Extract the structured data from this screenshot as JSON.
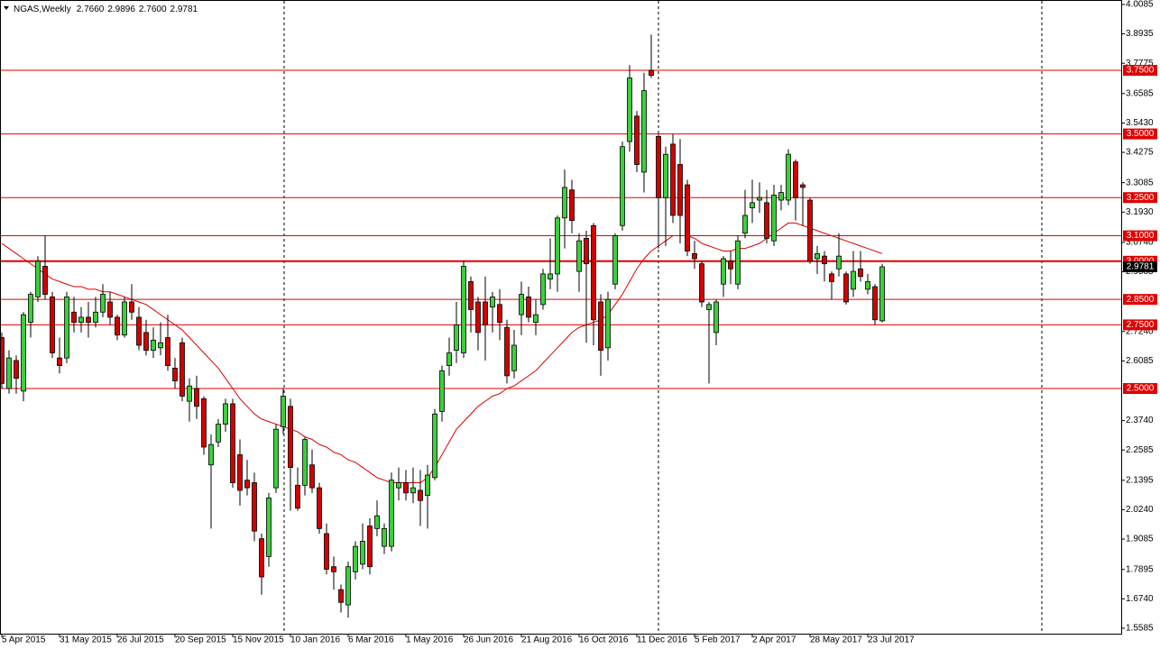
{
  "chart_data": {
    "type": "candlestick",
    "title": "NGAS,Weekly",
    "header_values": [
      {
        "value": 2.766,
        "label": "2.7660"
      },
      {
        "value": 2.9896,
        "label": "2.9896"
      },
      {
        "value": 2.76,
        "label": "2.7600"
      },
      {
        "value": 2.9781,
        "label": "2.9781"
      }
    ],
    "categories": [
      "5 Apr 2015",
      null,
      null,
      null,
      null,
      null,
      null,
      null,
      "31 May 2015",
      null,
      null,
      null,
      null,
      null,
      null,
      null,
      "26 Jul 2015",
      null,
      null,
      null,
      null,
      null,
      null,
      null,
      "20 Sep 2015",
      null,
      null,
      null,
      null,
      null,
      null,
      null,
      "15 Nov 2015",
      null,
      null,
      null,
      null,
      null,
      null,
      null,
      "10 Jan 2016",
      null,
      null,
      null,
      null,
      null,
      null,
      null,
      "6 Mar 2016",
      null,
      null,
      null,
      null,
      null,
      null,
      null,
      "1 May 2016",
      null,
      null,
      null,
      null,
      null,
      null,
      null,
      "26 Jun 2016",
      null,
      null,
      null,
      null,
      null,
      null,
      null,
      "21 Aug 2016",
      null,
      null,
      null,
      null,
      null,
      null,
      null,
      "16 Oct 2016",
      null,
      null,
      null,
      null,
      null,
      null,
      null,
      "11 Dec 2016",
      null,
      null,
      null,
      null,
      null,
      null,
      null,
      "5 Feb 2017",
      null,
      null,
      null,
      null,
      null,
      null,
      null,
      "2 Apr 2017",
      null,
      null,
      null,
      null,
      null,
      null,
      null,
      "28 May 2017",
      null,
      null,
      null,
      null,
      null,
      null,
      null,
      "23 Jul 2017",
      null,
      null
    ],
    "open": [
      2.7,
      2.5,
      2.61,
      2.49,
      2.76,
      2.86,
      2.98,
      2.86,
      2.62,
      2.62,
      2.8,
      2.76,
      2.78,
      2.76,
      2.8,
      2.84,
      2.78,
      2.71,
      2.84,
      2.78,
      2.72,
      2.65,
      2.66,
      2.7,
      2.58,
      2.68,
      2.45,
      2.5,
      2.46,
      2.2,
      2.29,
      2.36,
      2.44,
      2.24,
      2.14,
      2.13,
      1.91,
      1.84,
      2.11,
      2.35,
      2.43,
      2.12,
      2.12,
      2.2,
      2.11,
      1.93,
      1.8,
      1.71,
      1.65,
      1.78,
      1.81,
      1.96,
      1.95,
      1.88,
      1.88,
      2.11,
      2.13,
      2.09,
      2.1,
      2.08,
      2.15,
      2.41,
      2.59,
      2.65,
      2.64,
      2.92,
      2.84,
      2.84,
      2.82,
      2.83,
      2.74,
      2.57,
      2.79,
      2.86,
      2.76,
      2.83,
      2.93,
      2.95,
      3.17,
      3.28,
      2.96,
      3.09,
      3.14,
      2.84,
      2.66,
      2.91,
      3.14,
      3.47,
      3.57,
      3.35,
      3.75,
      3.49,
      3.25,
      3.46,
      3.38,
      3.3,
      3.03,
      2.99,
      2.81,
      2.72,
      2.91,
      3.0,
      2.91,
      3.11,
      3.21,
      3.24,
      3.23,
      3.08,
      3.24,
      3.24,
      3.39,
      3.3,
      3.24,
      3.01,
      3.02,
      2.95,
      2.97,
      2.95,
      2.89,
      2.97,
      2.89,
      2.9,
      2.766
    ],
    "high": [
      2.72,
      2.65,
      2.63,
      2.8,
      2.88,
      3.02,
      3.1,
      2.88,
      2.7,
      2.88,
      2.86,
      2.82,
      2.84,
      2.86,
      2.91,
      2.88,
      2.79,
      2.86,
      2.91,
      2.82,
      2.77,
      2.74,
      2.76,
      2.79,
      2.62,
      2.7,
      2.54,
      2.55,
      2.47,
      2.32,
      2.38,
      2.46,
      2.46,
      2.3,
      2.22,
      2.17,
      1.93,
      2.09,
      2.36,
      2.5,
      2.46,
      2.19,
      2.31,
      2.26,
      2.13,
      1.97,
      1.84,
      1.73,
      1.82,
      1.9,
      1.97,
      1.99,
      2.06,
      1.97,
      2.17,
      2.19,
      2.18,
      2.19,
      2.18,
      2.2,
      2.42,
      2.59,
      2.7,
      2.84,
      3.0,
      2.94,
      2.86,
      2.94,
      2.88,
      2.89,
      2.77,
      2.73,
      2.92,
      2.9,
      2.85,
      2.97,
      3.09,
      3.18,
      3.36,
      3.32,
      3.11,
      3.12,
      3.15,
      2.87,
      2.88,
      3.11,
      3.47,
      3.77,
      3.59,
      3.74,
      3.89,
      3.5,
      3.45,
      3.5,
      3.48,
      3.32,
      3.08,
      3.0,
      2.84,
      2.85,
      3.02,
      3.04,
      3.1,
      3.28,
      3.32,
      3.31,
      3.28,
      3.3,
      3.3,
      3.44,
      3.4,
      3.31,
      3.25,
      3.06,
      3.04,
      2.96,
      3.11,
      2.96,
      3.04,
      3.04,
      2.95,
      2.91,
      2.9896
    ],
    "low": [
      2.5,
      2.48,
      2.48,
      2.45,
      2.7,
      2.84,
      2.85,
      2.62,
      2.56,
      2.6,
      2.72,
      2.72,
      2.7,
      2.74,
      2.78,
      2.75,
      2.69,
      2.7,
      2.77,
      2.65,
      2.63,
      2.62,
      2.63,
      2.57,
      2.5,
      2.45,
      2.37,
      2.38,
      2.24,
      1.95,
      2.27,
      2.33,
      2.11,
      2.04,
      2.08,
      1.9,
      1.69,
      1.8,
      2.09,
      2.32,
      2.02,
      2.02,
      2.08,
      2.09,
      1.93,
      1.77,
      1.71,
      1.62,
      1.6,
      1.75,
      1.79,
      1.77,
      1.92,
      1.85,
      1.86,
      2.06,
      2.06,
      2.05,
      1.96,
      1.95,
      2.14,
      2.37,
      2.55,
      2.6,
      2.62,
      2.72,
      2.65,
      2.61,
      2.72,
      2.69,
      2.52,
      2.54,
      2.71,
      2.76,
      2.71,
      2.81,
      2.89,
      2.88,
      3.05,
      3.11,
      2.88,
      2.68,
      2.67,
      2.55,
      2.61,
      2.89,
      3.12,
      3.43,
      3.35,
      3.27,
      3.72,
      3.05,
      3.06,
      3.15,
      3.07,
      3.02,
      2.97,
      2.82,
      2.52,
      2.67,
      2.86,
      2.91,
      2.89,
      3.09,
      3.15,
      3.19,
      3.07,
      3.06,
      3.2,
      3.22,
      3.16,
      3.14,
      2.99,
      2.95,
      2.92,
      2.85,
      2.94,
      2.83,
      2.86,
      2.92,
      2.87,
      2.75,
      2.76
    ],
    "close": [
      2.52,
      2.62,
      2.54,
      2.79,
      2.87,
      3.0,
      2.87,
      2.64,
      2.59,
      2.86,
      2.76,
      2.78,
      2.76,
      2.8,
      2.87,
      2.78,
      2.71,
      2.84,
      2.8,
      2.67,
      2.65,
      2.69,
      2.68,
      2.59,
      2.53,
      2.47,
      2.51,
      2.43,
      2.27,
      2.28,
      2.36,
      2.44,
      2.13,
      2.1,
      2.11,
      1.94,
      1.76,
      2.07,
      2.34,
      2.47,
      2.19,
      2.03,
      2.3,
      2.11,
      1.95,
      1.79,
      1.78,
      1.66,
      1.8,
      1.88,
      1.9,
      1.8,
      2.0,
      1.95,
      2.14,
      2.13,
      2.09,
      2.11,
      2.06,
      2.16,
      2.4,
      2.57,
      2.64,
      2.75,
      2.98,
      2.81,
      2.72,
      2.75,
      2.86,
      2.76,
      2.55,
      2.67,
      2.87,
      2.78,
      2.79,
      2.95,
      2.95,
      3.17,
      3.29,
      3.16,
      3.08,
      2.99,
      2.77,
      2.65,
      2.85,
      3.1,
      3.45,
      3.72,
      3.38,
      3.67,
      3.73,
      3.25,
      3.42,
      3.18,
      3.18,
      3.04,
      3.01,
      2.84,
      2.83,
      2.84,
      3.01,
      2.97,
      3.08,
      3.18,
      3.23,
      3.25,
      3.09,
      3.26,
      3.27,
      3.42,
      3.25,
      3.29,
      3.0,
      3.03,
      2.99,
      2.92,
      3.02,
      2.84,
      2.96,
      2.94,
      2.92,
      2.77,
      2.9781
    ],
    "up_color": "#3ccf3c",
    "down_color": "#d40000",
    "ma": {
      "color": "#e00000",
      "values": [
        3.07,
        3.05,
        3.03,
        3.01,
        2.99,
        2.97,
        2.95,
        2.93,
        2.92,
        2.91,
        2.9,
        2.9,
        2.89,
        2.89,
        2.88,
        2.88,
        2.87,
        2.86,
        2.85,
        2.84,
        2.83,
        2.81,
        2.79,
        2.77,
        2.75,
        2.73,
        2.7,
        2.67,
        2.64,
        2.61,
        2.58,
        2.54,
        2.5,
        2.46,
        2.43,
        2.4,
        2.38,
        2.37,
        2.36,
        2.35,
        2.34,
        2.33,
        2.31,
        2.3,
        2.28,
        2.27,
        2.25,
        2.24,
        2.22,
        2.21,
        2.19,
        2.17,
        2.15,
        2.14,
        2.13,
        2.13,
        2.13,
        2.13,
        2.13,
        2.15,
        2.19,
        2.24,
        2.29,
        2.34,
        2.37,
        2.4,
        2.43,
        2.45,
        2.47,
        2.48,
        2.5,
        2.51,
        2.53,
        2.55,
        2.57,
        2.6,
        2.63,
        2.66,
        2.69,
        2.72,
        2.74,
        2.75,
        2.76,
        2.77,
        2.79,
        2.83,
        2.87,
        2.92,
        2.97,
        3.01,
        3.04,
        3.06,
        3.08,
        3.1,
        3.1,
        3.1,
        3.09,
        3.07,
        3.06,
        3.05,
        3.04,
        3.04,
        3.05,
        3.05,
        3.06,
        3.07,
        3.09,
        3.11,
        3.13,
        3.15,
        3.15,
        3.14,
        3.13,
        3.12,
        3.11,
        3.1,
        3.09,
        3.08,
        3.07,
        3.06,
        3.05,
        3.04,
        3.03
      ]
    },
    "levels": {
      "color": "#e00000",
      "values": [
        {
          "value": 3.75,
          "label": "3.7500"
        },
        {
          "value": 3.5,
          "label": "3.5000"
        },
        {
          "value": 3.25,
          "label": "3.2500"
        },
        {
          "value": 3.1,
          "label": "3.1000"
        },
        {
          "value": 3.0,
          "label": "3.0000"
        },
        {
          "value": 2.85,
          "label": "2.8500"
        },
        {
          "value": 2.75,
          "label": "2.7500"
        },
        {
          "value": 2.5,
          "label": "2.5000"
        }
      ]
    },
    "last_price": {
      "value": 2.9781,
      "label": "2.9781"
    },
    "ylim": [
      1.537,
      4.019
    ],
    "yticks": [
      {
        "value": 4.0085,
        "label": "4.0085"
      },
      {
        "value": 3.8935,
        "label": "3.8935"
      },
      {
        "value": 3.7775,
        "label": "3.7775"
      },
      {
        "value": 3.6585,
        "label": "3.6585"
      },
      {
        "value": 3.543,
        "label": "3.5430"
      },
      {
        "value": 3.4275,
        "label": "3.4275"
      },
      {
        "value": 3.3085,
        "label": "3.3085"
      },
      {
        "value": 3.193,
        "label": "3.1930"
      },
      {
        "value": 3.074,
        "label": "3.0740"
      },
      {
        "value": 2.9585,
        "label": "2.9585"
      },
      {
        "value": 2.724,
        "label": "2.7240"
      },
      {
        "value": 2.6085,
        "label": "2.6085"
      },
      {
        "value": 2.374,
        "label": "2.3740"
      },
      {
        "value": 2.2585,
        "label": "2.2585"
      },
      {
        "value": 2.1395,
        "label": "2.1395"
      },
      {
        "value": 2.024,
        "label": "2.0240"
      },
      {
        "value": 1.9085,
        "label": "1.9085"
      },
      {
        "value": 1.7895,
        "label": "1.7895"
      },
      {
        "value": 1.674,
        "label": "1.6740"
      },
      {
        "value": 1.5585,
        "label": "1.5585"
      }
    ]
  }
}
